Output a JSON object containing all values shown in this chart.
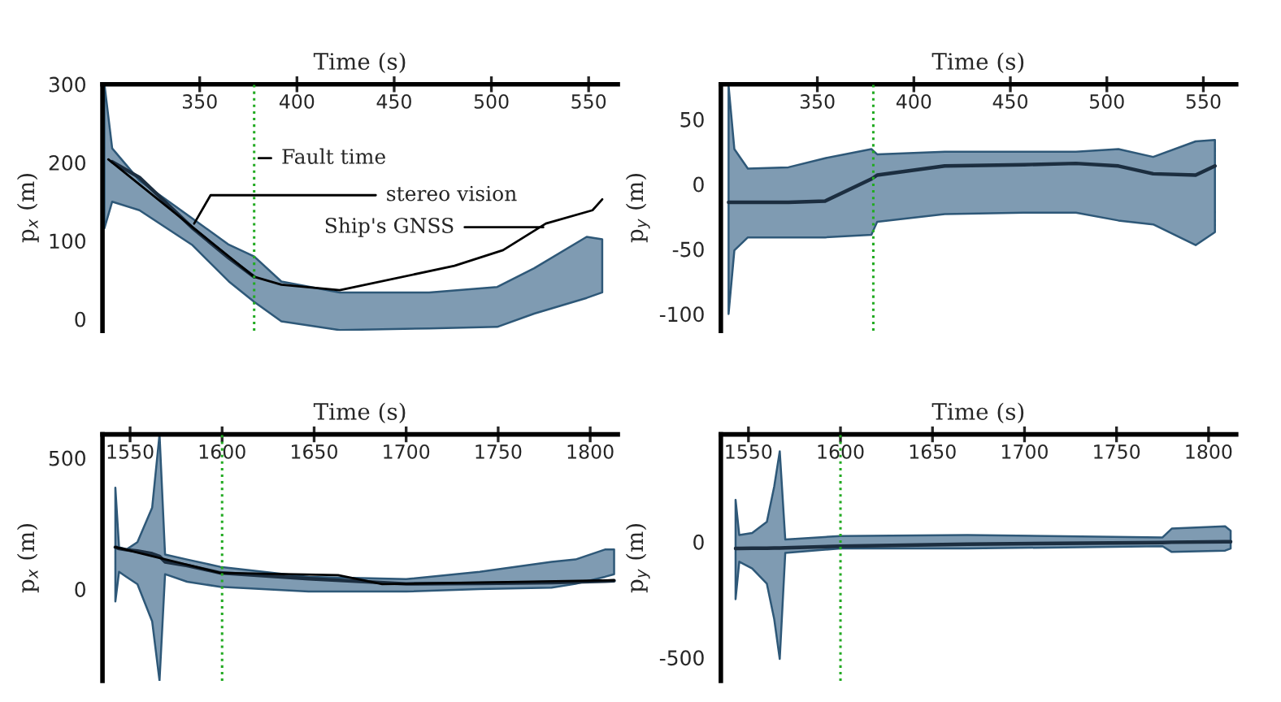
{
  "chart_data": [
    {
      "type": "line",
      "xlabel": "Time (s)",
      "ylabel": "p$_{x}$ (m)",
      "xlim": [
        300,
        565
      ],
      "ylim": [
        -15,
        300
      ],
      "xticks": [
        350,
        400,
        450,
        500,
        550
      ],
      "yticks": [
        0,
        100,
        200,
        300
      ],
      "grid": false,
      "legend": false,
      "marker": "none",
      "line_style": "solid",
      "ref_lines": [
        {
          "axis": "x",
          "value": 378,
          "label": "Fault time",
          "color": "#22aa22",
          "line_style": "dotted"
        }
      ],
      "series": [
        {
          "name": "stereo vision",
          "color": "#1c2e40",
          "x": [
            301,
            305,
            319,
            346,
            365,
            378,
            392,
            422,
            468,
            503,
            522,
            549,
            557
          ],
          "values": [
            null,
            201,
            181,
            117,
            78,
            54,
            null,
            null,
            null,
            null,
            null,
            null,
            null
          ],
          "upper": [
            300,
            218,
            177,
            129,
            95,
            80,
            48,
            34,
            34,
            41,
            65,
            105,
            102
          ],
          "lower": [
            116,
            150,
            139,
            95,
            48,
            22,
            -3,
            -14,
            -12,
            -10,
            7,
            27,
            34
          ]
        },
        {
          "name": "Ship's GNSS",
          "color": "#000000",
          "x": [
            303,
            378,
            392,
            422,
            481,
            506,
            528,
            552,
            557
          ],
          "values": [
            204,
            54,
            44,
            37,
            68,
            88,
            122,
            139,
            153
          ]
        }
      ]
    },
    {
      "type": "line",
      "xlabel": "Time (s)",
      "ylabel": "p$_{y}$ (m)",
      "xlim": [
        300,
        567
      ],
      "ylim": [
        -113,
        77
      ],
      "xticks": [
        350,
        400,
        450,
        500,
        550
      ],
      "yticks": [
        -100,
        -50,
        0,
        50
      ],
      "grid": false,
      "legend": false,
      "marker": "none",
      "line_style": "solid",
      "ref_lines": [
        {
          "axis": "x",
          "value": 379,
          "color": "#22aa22",
          "line_style": "dotted"
        }
      ],
      "series": [
        {
          "color": "#1c2e40",
          "x": [
            304,
            307,
            314,
            335,
            354,
            378,
            381,
            416,
            457,
            484,
            506,
            524,
            546,
            556
          ],
          "values": [
            -14,
            -14,
            -14,
            -14,
            -13,
            4,
            7,
            14,
            15,
            16,
            14,
            8,
            7,
            14
          ],
          "upper": [
            76,
            27,
            12,
            13,
            20,
            27,
            23,
            25,
            25,
            25,
            27,
            21,
            33,
            34
          ],
          "lower": [
            -100,
            -51,
            -41,
            -41,
            -41,
            -39,
            -29,
            -23,
            -22,
            -22,
            -28,
            -31,
            -47,
            -37
          ]
        }
      ]
    },
    {
      "type": "line",
      "xlabel": "Time (s)",
      "ylabel": "p$_{x}$ (m)",
      "xlim": [
        1535,
        1815
      ],
      "ylim": [
        -350,
        590
      ],
      "xticks": [
        1550,
        1600,
        1650,
        1700,
        1750,
        1800
      ],
      "yticks": [
        0,
        500
      ],
      "grid": false,
      "legend": false,
      "marker": "none",
      "line_style": "solid",
      "ref_lines": [
        {
          "axis": "x",
          "value": 1600,
          "color": "#22aa22",
          "line_style": "dotted"
        }
      ],
      "series": [
        {
          "color": "#1c2e40",
          "x": [
            1542,
            1544,
            1548,
            1554,
            1562,
            1566,
            1569,
            1581,
            1599,
            1647,
            1700,
            1740,
            1779,
            1792,
            1808,
            1813
          ],
          "values": [
            160,
            155,
            150,
            145,
            135,
            125,
            104,
            90,
            62,
            40,
            20,
            22,
            25,
            27,
            30,
            32
          ],
          "upper": [
            387,
            160,
            151,
            179,
            311,
            590,
            132,
            113,
            85,
            47,
            38,
            66,
            104,
            113,
            151,
            151
          ],
          "lower": [
            -47,
            66,
            47,
            19,
            -123,
            -349,
            57,
            28,
            9,
            -9,
            -9,
            0,
            6,
            20,
            47,
            57
          ]
        },
        {
          "color": "#000000",
          "x": [
            1542,
            1599,
            1663,
            1687,
            1813
          ],
          "values": [
            160,
            62,
            53,
            19,
            34
          ]
        }
      ]
    },
    {
      "type": "line",
      "xlabel": "Time (s)",
      "ylabel": "p$_{y}$ (m)",
      "xlim": [
        1535,
        1815
      ],
      "ylim": [
        -601,
        464
      ],
      "xticks": [
        1550,
        1600,
        1650,
        1700,
        1750,
        1800
      ],
      "yticks": [
        -500,
        0
      ],
      "grid": false,
      "legend": false,
      "marker": "none",
      "line_style": "solid",
      "ref_lines": [
        {
          "axis": "x",
          "value": 1600,
          "color": "#22aa22",
          "line_style": "dotted"
        }
      ],
      "series": [
        {
          "color": "#1c2e40",
          "x": [
            1543,
            1545,
            1552,
            1560,
            1564,
            1567,
            1570,
            1600,
            1669,
            1775,
            1780,
            1809,
            1812
          ],
          "values": [
            -29,
            -29,
            -28,
            -28,
            -27,
            -27,
            -26,
            -19,
            -10,
            -3,
            -2,
            0,
            0
          ],
          "upper": [
            181,
            29,
            38,
            86,
            239,
            391,
            10,
            25,
            29,
            19,
            57,
            67,
            48
          ],
          "lower": [
            -248,
            -86,
            -115,
            -181,
            -334,
            -506,
            -48,
            -29,
            -29,
            -19,
            -44,
            -38,
            -29
          ]
        }
      ]
    }
  ]
}
